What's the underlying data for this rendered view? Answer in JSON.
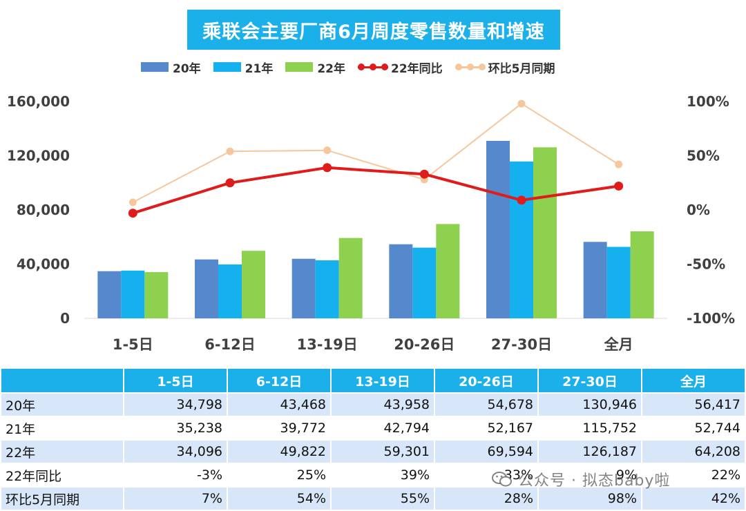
{
  "title": "乘联会主要厂商6月周度零售数量和增速",
  "colors": {
    "y20": "#5689cc",
    "y21": "#15b0ee",
    "y22": "#8ed14f",
    "yoy22": "#e01b1b",
    "mom": "#f6c79c",
    "title_bg": "#1bb0ea",
    "header_bg": "#1bb0ea",
    "row_stripe": "#d7e6f8"
  },
  "chart_data": {
    "type": "bar",
    "categories": [
      "1-5日",
      "6-12日",
      "13-19日",
      "20-26日",
      "27-30日",
      "全月"
    ],
    "series": [
      {
        "name": "20年",
        "type": "bar",
        "axis": "left",
        "values": [
          34798,
          43468,
          43958,
          54678,
          130946,
          56417
        ]
      },
      {
        "name": "21年",
        "type": "bar",
        "axis": "left",
        "values": [
          35238,
          39772,
          42794,
          52167,
          115752,
          52744
        ]
      },
      {
        "name": "22年",
        "type": "bar",
        "axis": "left",
        "values": [
          34096,
          49822,
          59301,
          69594,
          126187,
          64208
        ]
      },
      {
        "name": "22年同比",
        "type": "line",
        "axis": "right",
        "values": [
          -3,
          25,
          39,
          33,
          9,
          22
        ]
      },
      {
        "name": "环比5月同期",
        "type": "line",
        "axis": "right",
        "values": [
          7,
          54,
          55,
          28,
          98,
          42
        ]
      }
    ],
    "y_left": {
      "ticks": [
        "0",
        "40,000",
        "80,000",
        "120,000",
        "160,000"
      ],
      "min": 0,
      "max": 160000
    },
    "y_right": {
      "ticks": [
        "-100%",
        "-50%",
        "0%",
        "50%",
        "100%"
      ],
      "min": -100,
      "max": 100
    },
    "legend_position": "top",
    "grid": false
  },
  "table": {
    "headers": [
      "",
      "1-5日",
      "6-12日",
      "13-19日",
      "20-26日",
      "27-30日",
      "全月"
    ],
    "rows": [
      [
        "20年",
        "34,798",
        "43,468",
        "43,958",
        "54,678",
        "130,946",
        "56,417"
      ],
      [
        "21年",
        "35,238",
        "39,772",
        "42,794",
        "52,167",
        "115,752",
        "52,744"
      ],
      [
        "22年",
        "34,096",
        "49,822",
        "59,301",
        "69,594",
        "126,187",
        "64,208"
      ],
      [
        "22年同比",
        "-3%",
        "25%",
        "39%",
        "33%",
        "9%",
        "22%"
      ],
      [
        "环比5月同期",
        "7%",
        "54%",
        "55%",
        "28%",
        "98%",
        "42%"
      ]
    ]
  },
  "watermark": {
    "icon": "wechat-icon",
    "text": "公众号 · 拟态baby啦"
  }
}
